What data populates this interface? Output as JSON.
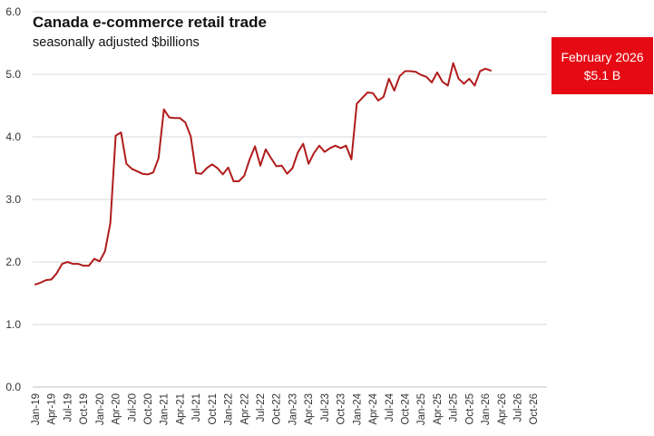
{
  "colors": {
    "line": "#b01c1c",
    "callout": "#e50a14"
  },
  "callout": {
    "line1": "February 2026",
    "line2": "$5.1 B"
  },
  "chart_data": {
    "type": "line",
    "title": "Canada e-commerce retail trade",
    "subtitle": "seasonally adjusted $billions",
    "xlabel": "",
    "ylabel": "",
    "ylim": [
      0,
      6
    ],
    "yticks": [
      "0.0",
      "1.0",
      "2.0",
      "3.0",
      "4.0",
      "5.0",
      "6.0"
    ],
    "grid": true,
    "x_tick_labels": [
      "Jan-19",
      "Apr-19",
      "Jul-19",
      "Oct-19",
      "Jan-20",
      "Apr-20",
      "Jul-20",
      "Oct-20",
      "Jan-21",
      "Apr-21",
      "Jul-21",
      "Oct-21",
      "Jan-22",
      "Apr-22",
      "Jul-22",
      "Oct-22",
      "Jan-23",
      "Apr-23",
      "Jul-23",
      "Oct-23",
      "Jan-24",
      "Apr-24",
      "Jul-24",
      "Oct-24",
      "Jan-25",
      "Apr-25",
      "Jul-25",
      "Oct-25",
      "Jan-26",
      "Apr-26",
      "Jul-26",
      "Oct-26"
    ],
    "x_start": "2019-01",
    "x_end": "2026-12",
    "series": [
      {
        "values": [
          1.64,
          1.67,
          1.71,
          1.72,
          1.82,
          1.97,
          2.0,
          1.97,
          1.97,
          1.94,
          1.94,
          2.05,
          2.01,
          2.17,
          2.62,
          4.02,
          4.07,
          3.57,
          3.49,
          3.45,
          3.41,
          3.4,
          3.43,
          3.66,
          4.44,
          4.31,
          4.3,
          4.3,
          4.23,
          4.01,
          3.42,
          3.41,
          3.5,
          3.56,
          3.5,
          3.4,
          3.51,
          3.29,
          3.29,
          3.38,
          3.64,
          3.85,
          3.54,
          3.8,
          3.66,
          3.53,
          3.54,
          3.41,
          3.5,
          3.75,
          3.89,
          3.57,
          3.74,
          3.86,
          3.76,
          3.82,
          3.86,
          3.82,
          3.86,
          3.64,
          4.53,
          4.62,
          4.71,
          4.7,
          4.58,
          4.64,
          4.93,
          4.74,
          4.97,
          5.05,
          5.05,
          5.04,
          4.99,
          4.96,
          4.87,
          5.03,
          4.88,
          4.82,
          5.18,
          4.93,
          4.85,
          4.93,
          4.82,
          5.05,
          5.09,
          5.06
        ]
      }
    ]
  }
}
